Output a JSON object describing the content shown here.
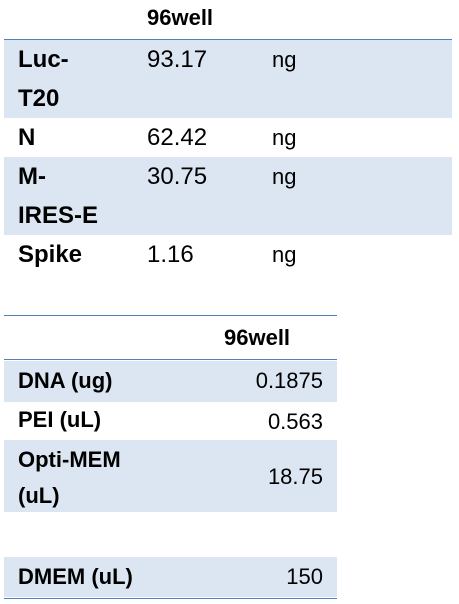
{
  "table1": {
    "header": "96well",
    "rows": [
      [
        "Luc-T20",
        "93.17",
        "ng"
      ],
      [
        "N",
        "62.42",
        "ng"
      ],
      [
        "M-IRES-E",
        "30.75",
        "ng"
      ],
      [
        "Spike",
        "1.16",
        "ng"
      ]
    ]
  },
  "table2": {
    "header": "96well",
    "rows": [
      [
        "DNA (ug)",
        "0.1875"
      ],
      [
        "PEI (uL)",
        "0.563"
      ],
      [
        "Opti-MEM (uL)",
        "18.75"
      ],
      [
        "DMEM (uL)",
        "150"
      ]
    ]
  }
}
